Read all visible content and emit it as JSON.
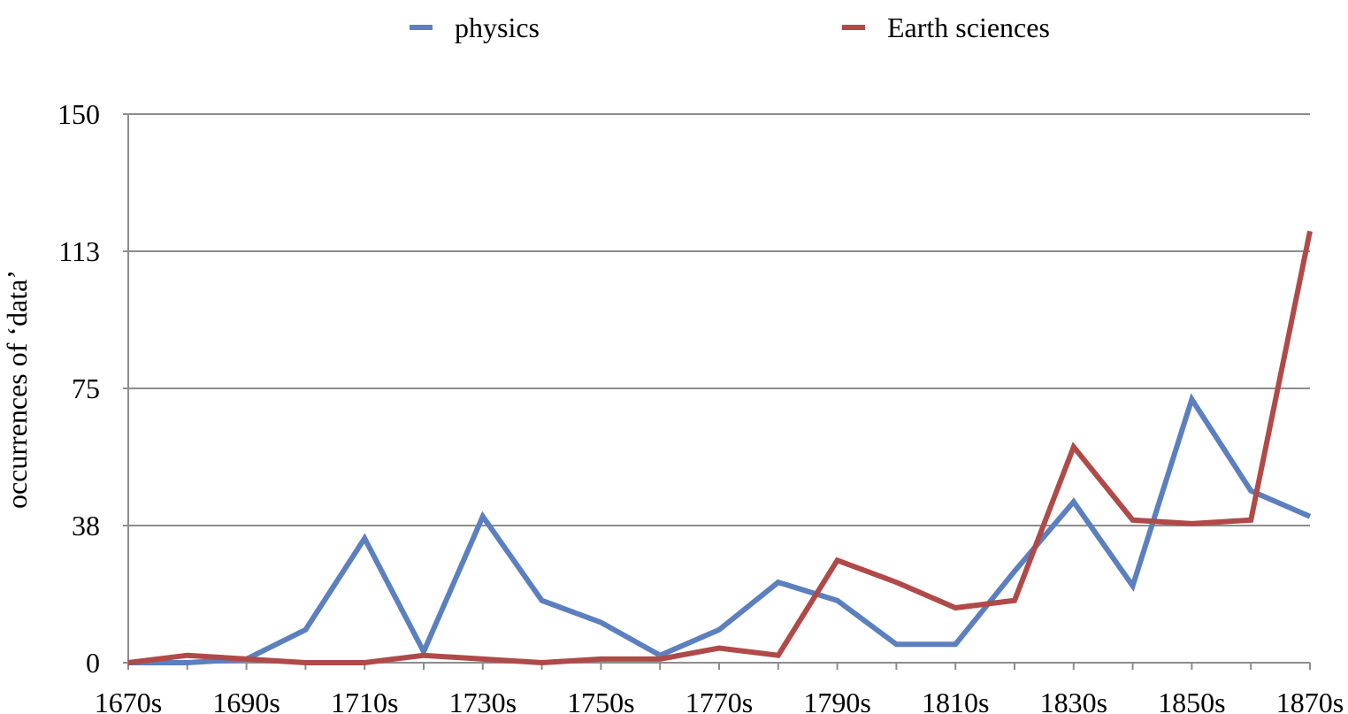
{
  "chart_data": {
    "type": "line",
    "xlabel": "",
    "ylabel": "occurrences of ‘data’",
    "ylim": [
      0,
      150
    ],
    "y_ticks": [
      "0",
      "38",
      "75",
      "113",
      "150"
    ],
    "y_tick_values": [
      0,
      37.5,
      75,
      112.5,
      150
    ],
    "x": [
      "1670s",
      "1680s",
      "1690s",
      "1700s",
      "1710s",
      "1720s",
      "1730s",
      "1740s",
      "1750s",
      "1760s",
      "1770s",
      "1780s",
      "1790s",
      "1800s",
      "1810s",
      "1820s",
      "1830s",
      "1840s",
      "1850s",
      "1860s",
      "1870s"
    ],
    "x_tick_labels": [
      "1670s",
      "",
      "1690s",
      "",
      "1710s",
      "",
      "1730s",
      "",
      "1750s",
      "",
      "1770s",
      "",
      "1790s",
      "",
      "1810s",
      "",
      "1830s",
      "",
      "1850s",
      "",
      "1870s"
    ],
    "grid": true,
    "legend_position": "top",
    "series": [
      {
        "name": "physics",
        "color": "#5b7fbf",
        "values": [
          0,
          0,
          1,
          9,
          34,
          3,
          40,
          17,
          11,
          2,
          9,
          22,
          17,
          5,
          5,
          25,
          44,
          21,
          72,
          47,
          40
        ]
      },
      {
        "name": "Earth sciences",
        "color": "#b04a48",
        "values": [
          0,
          2,
          1,
          0,
          0,
          2,
          1,
          0,
          1,
          1,
          4,
          2,
          28,
          22,
          15,
          17,
          59,
          39,
          38,
          39,
          118
        ]
      }
    ],
    "colors": {
      "grid": "#8c8c8c",
      "axis": "#8c8c8c"
    }
  }
}
